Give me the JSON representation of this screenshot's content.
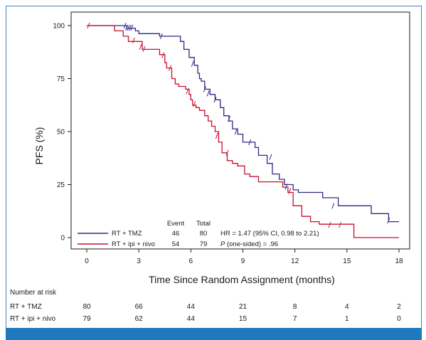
{
  "chart_data": {
    "type": "line",
    "subtype": "kaplan-meier step",
    "title": "",
    "xlabel": "Time Since Random Assignment (months)",
    "ylabel": "PFS (%)",
    "xlim": [
      0,
      18
    ],
    "ylim": [
      0,
      100
    ],
    "x_ticks": [
      0,
      3,
      6,
      9,
      12,
      15,
      18
    ],
    "y_ticks": [
      0,
      25,
      50,
      75,
      100
    ],
    "grid": false,
    "legend": {
      "placement": "bottom-left",
      "col_event": "Event",
      "col_total": "Total",
      "entries": [
        {
          "name": "RT + TMZ",
          "event": "46",
          "total": "80",
          "stat": "HR = 1.47 (95% CI, 0.98 to 2.21)"
        },
        {
          "name": "RT + ipi + nivo",
          "event": "54",
          "total": "79",
          "stat_italic": "P",
          "stat": " (one-sided) = .96"
        }
      ]
    },
    "series": [
      {
        "name": "RT + TMZ",
        "color": "#2b2a86",
        "x": [
          0,
          2.3,
          2.8,
          3.0,
          4.2,
          5.4,
          5.6,
          5.9,
          6.2,
          6.4,
          6.5,
          6.6,
          6.8,
          7.1,
          7.4,
          7.7,
          7.9,
          8.2,
          8.4,
          8.7,
          9.0,
          9.7,
          9.9,
          10.4,
          10.7,
          11.1,
          11.4,
          11.9,
          12.2,
          13.6,
          14.5,
          16.4,
          17.4,
          18.0
        ],
        "y": [
          100,
          98.8,
          97.5,
          96.2,
          95.0,
          92.5,
          88.8,
          85.0,
          81.3,
          77.5,
          75.0,
          73.8,
          70.0,
          67.5,
          65.0,
          61.3,
          57.5,
          55.0,
          51.3,
          48.8,
          45.0,
          42.5,
          38.8,
          35.0,
          30.0,
          27.5,
          25.0,
          22.5,
          21.3,
          18.8,
          15.0,
          11.3,
          7.5,
          7.5
        ]
      },
      {
        "name": "RT + ipi + nivo",
        "color": "#c8102e",
        "x": [
          0,
          1.6,
          2.1,
          2.4,
          3.2,
          4.2,
          4.5,
          4.6,
          4.9,
          5.1,
          5.3,
          5.7,
          5.9,
          6.0,
          6.1,
          6.3,
          6.5,
          6.8,
          7.0,
          7.2,
          7.4,
          7.6,
          7.8,
          8.1,
          8.4,
          8.7,
          9.1,
          9.4,
          9.9,
          10.2,
          11.3,
          11.6,
          11.9,
          12.4,
          12.9,
          13.4,
          15.4,
          18.0
        ],
        "y": [
          100,
          97.5,
          95.0,
          92.5,
          88.8,
          86.3,
          82.5,
          80.0,
          75.0,
          72.5,
          71.3,
          70.0,
          67.5,
          65.0,
          62.5,
          61.3,
          60.0,
          57.5,
          55.0,
          52.5,
          50.0,
          45.0,
          40.0,
          36.3,
          35.0,
          33.8,
          30.0,
          28.8,
          26.3,
          26.3,
          23.8,
          21.3,
          15.0,
          10.0,
          7.5,
          6.3,
          0,
          0
        ]
      }
    ],
    "censor_marks": {
      "RT + TMZ": [
        [
          2.2,
          100
        ],
        [
          2.3,
          99
        ],
        [
          2.4,
          99
        ],
        [
          2.5,
          99
        ],
        [
          2.6,
          99
        ],
        [
          4.3,
          95
        ],
        [
          6.1,
          82
        ],
        [
          6.8,
          70
        ],
        [
          7.0,
          68
        ],
        [
          7.4,
          65
        ],
        [
          8.2,
          56
        ],
        [
          8.6,
          50
        ],
        [
          9.4,
          45
        ],
        [
          10.6,
          38
        ],
        [
          11.5,
          24
        ],
        [
          14.2,
          15
        ],
        [
          17.4,
          8
        ]
      ],
      "RT + ipi + nivo": [
        [
          0.1,
          100
        ],
        [
          2.7,
          93
        ],
        [
          3.1,
          90
        ],
        [
          3.3,
          89
        ],
        [
          4.4,
          86
        ],
        [
          4.8,
          80
        ],
        [
          5.8,
          69
        ],
        [
          6.2,
          63
        ],
        [
          7.5,
          48
        ],
        [
          8.1,
          40
        ],
        [
          11.7,
          22
        ],
        [
          14.0,
          6
        ],
        [
          14.6,
          6
        ]
      ]
    }
  },
  "risk_table": {
    "title": "Number at risk",
    "rows": [
      {
        "label": "RT + TMZ",
        "values": [
          "80",
          "66",
          "44",
          "21",
          "8",
          "4",
          "2"
        ]
      },
      {
        "label": "RT + ipi + nivo",
        "values": [
          "79",
          "62",
          "44",
          "15",
          "7",
          "1",
          "0"
        ]
      }
    ]
  }
}
